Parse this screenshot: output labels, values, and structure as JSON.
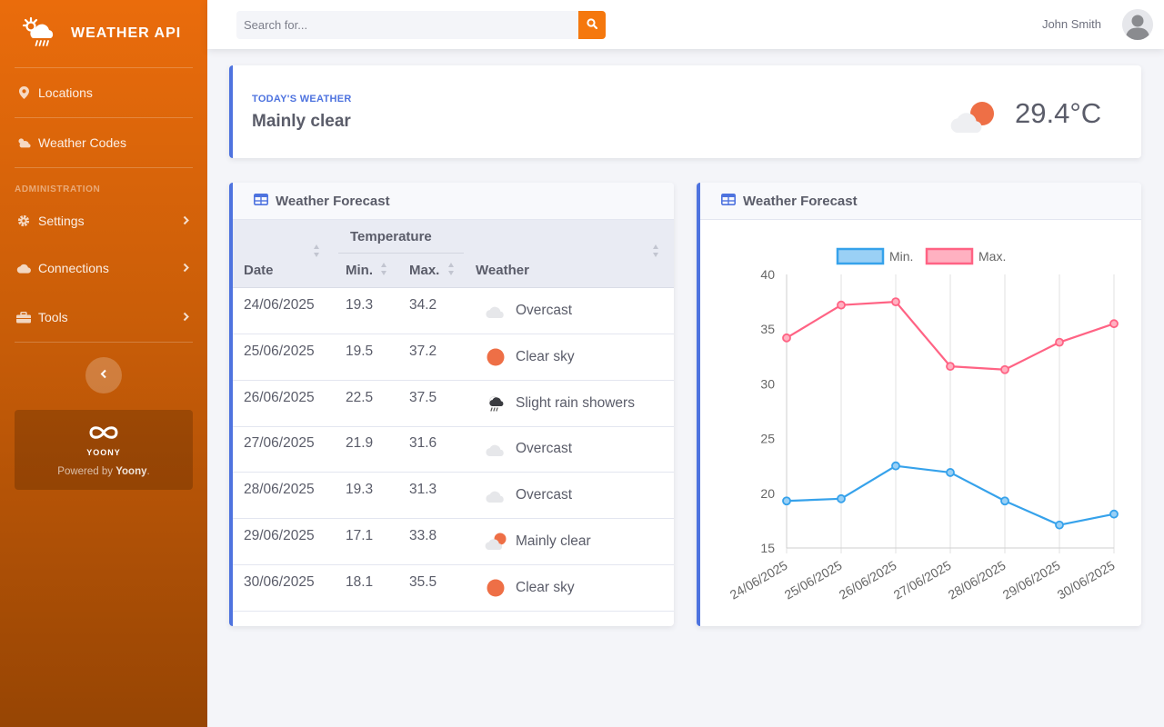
{
  "app": {
    "brand": "WEATHER API"
  },
  "sidebar": {
    "items": [
      {
        "label": "Locations",
        "icon": "map-marker-icon"
      },
      {
        "label": "Weather Codes",
        "icon": "cloud-sun-icon"
      }
    ],
    "admin_heading": "ADMINISTRATION",
    "admin_items": [
      {
        "label": "Settings",
        "icon": "gear-icon"
      },
      {
        "label": "Connections",
        "icon": "cloud-icon"
      },
      {
        "label": "Tools",
        "icon": "toolbox-icon"
      }
    ],
    "promo": {
      "logo": "YOONY",
      "powered_prefix": "Powered by ",
      "powered_name": "Yoony",
      "powered_suffix": "."
    }
  },
  "topbar": {
    "search_placeholder": "Search for...",
    "user_name": "John Smith"
  },
  "today": {
    "label": "TODAY'S WEATHER",
    "condition": "Mainly clear",
    "temperature": "29.4°C"
  },
  "forecast_table": {
    "title": "Weather Forecast",
    "group_header": "Temperature",
    "columns": {
      "date": "Date",
      "min": "Min.",
      "max": "Max.",
      "weather": "Weather"
    },
    "rows": [
      {
        "date": "24/06/2025",
        "min": "19.3",
        "max": "34.2",
        "weather": "Overcast",
        "icon": "overcast"
      },
      {
        "date": "25/06/2025",
        "min": "19.5",
        "max": "37.2",
        "weather": "Clear sky",
        "icon": "clear"
      },
      {
        "date": "26/06/2025",
        "min": "22.5",
        "max": "37.5",
        "weather": "Slight rain showers",
        "icon": "rain"
      },
      {
        "date": "27/06/2025",
        "min": "21.9",
        "max": "31.6",
        "weather": "Overcast",
        "icon": "overcast"
      },
      {
        "date": "28/06/2025",
        "min": "19.3",
        "max": "31.3",
        "weather": "Overcast",
        "icon": "overcast"
      },
      {
        "date": "29/06/2025",
        "min": "17.1",
        "max": "33.8",
        "weather": "Mainly clear",
        "icon": "mainly-clear"
      },
      {
        "date": "30/06/2025",
        "min": "18.1",
        "max": "35.5",
        "weather": "Clear sky",
        "icon": "clear"
      }
    ]
  },
  "forecast_chart": {
    "title": "Weather Forecast"
  },
  "chart_data": {
    "type": "line",
    "x": [
      "24/06/2025",
      "25/06/2025",
      "26/06/2025",
      "27/06/2025",
      "28/06/2025",
      "29/06/2025",
      "30/06/2025"
    ],
    "series": [
      {
        "name": "Min.",
        "values": [
          19.3,
          19.5,
          22.5,
          21.9,
          19.3,
          17.1,
          18.1
        ],
        "color": "#36a2eb",
        "fill": "#9ad0f5"
      },
      {
        "name": "Max.",
        "values": [
          34.2,
          37.2,
          37.5,
          31.6,
          31.3,
          33.8,
          35.5
        ],
        "color": "#ff6384",
        "fill": "#ffb1c1"
      }
    ],
    "yticks": [
      15,
      20,
      25,
      30,
      35,
      40
    ],
    "ylim": [
      15,
      40
    ],
    "legend": "top",
    "grid": true
  },
  "colors": {
    "accent": "#f5780e",
    "primary": "#4e73df",
    "sun": "#ee6f46"
  }
}
